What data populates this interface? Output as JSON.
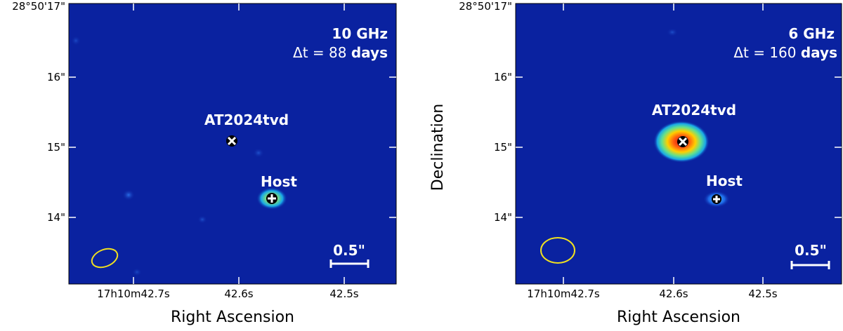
{
  "figure": {
    "panels": [
      {
        "id": "left",
        "freq_label": "10 GHz",
        "dt_prefix": "Δt = 88 ",
        "dt_unit": "days",
        "source_label": "AT2024tvd",
        "host_label": "Host",
        "scalebar_label": "0.5\"",
        "dec_ticks": [
          "28°50'17\"",
          "16\"",
          "15\"",
          "14\""
        ],
        "ra_ticks": [
          "17h10m42.7s",
          "42.6s",
          "42.5s"
        ],
        "xlabel": "Right Ascension",
        "ylabel": ""
      },
      {
        "id": "right",
        "freq_label": "6 GHz",
        "dt_prefix": "Δt = 160 ",
        "dt_unit": "days",
        "source_label": "AT2024tvd",
        "host_label": "Host",
        "scalebar_label": "0.5\"",
        "dec_ticks": [
          "28°50'17\"",
          "16\"",
          "15\"",
          "14\""
        ],
        "ra_ticks": [
          "17h10m42.7s",
          "42.6s",
          "42.5s"
        ],
        "xlabel": "Right Ascension",
        "ylabel": "Declination"
      }
    ],
    "colors": {
      "background": "#0a22a0",
      "beam": "#f0e020",
      "marker": "#ffffff",
      "scalebar": "#ffffff"
    }
  }
}
